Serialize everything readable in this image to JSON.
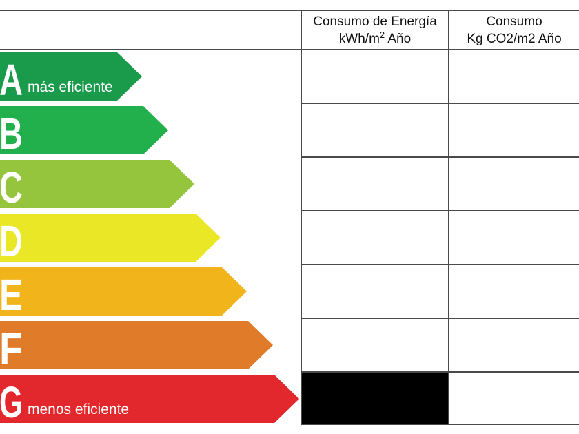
{
  "header": {
    "energy": {
      "line1": "Consumo de Energía",
      "unit": "kWh/m",
      "sup": "2",
      "suffix": " Año"
    },
    "co2": {
      "line1": "Consumo",
      "line2": "Kg CO2/m2 Año"
    }
  },
  "ratings": [
    {
      "letter": "A",
      "label": "más eficiente",
      "color": "#1a9a4b"
    },
    {
      "letter": "B",
      "label": "",
      "color": "#21b04c"
    },
    {
      "letter": "C",
      "label": "",
      "color": "#95c43d"
    },
    {
      "letter": "D",
      "label": "",
      "color": "#eae826"
    },
    {
      "letter": "E",
      "label": "",
      "color": "#f1b41b"
    },
    {
      "letter": "F",
      "label": "",
      "color": "#e07b29"
    },
    {
      "letter": "G",
      "label": "menos eficiente",
      "color": "#e2282c"
    }
  ],
  "marked": {
    "rating": "G",
    "column": "energy",
    "color": "#000000"
  }
}
